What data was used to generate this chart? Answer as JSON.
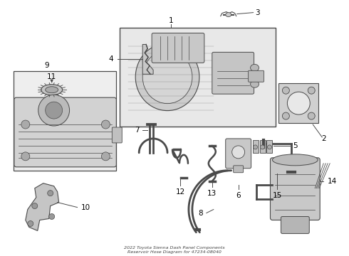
{
  "bg_color": "#ffffff",
  "line_color": "#4a4a4a",
  "fill_color": "#d8d8d8",
  "label_color": "#000000",
  "fig_width": 4.9,
  "fig_height": 3.6,
  "dpi": 100,
  "title": "2022 Toyota Sienna Dash Panel Components\nReservoir Hose Diagram for 47234-08040"
}
